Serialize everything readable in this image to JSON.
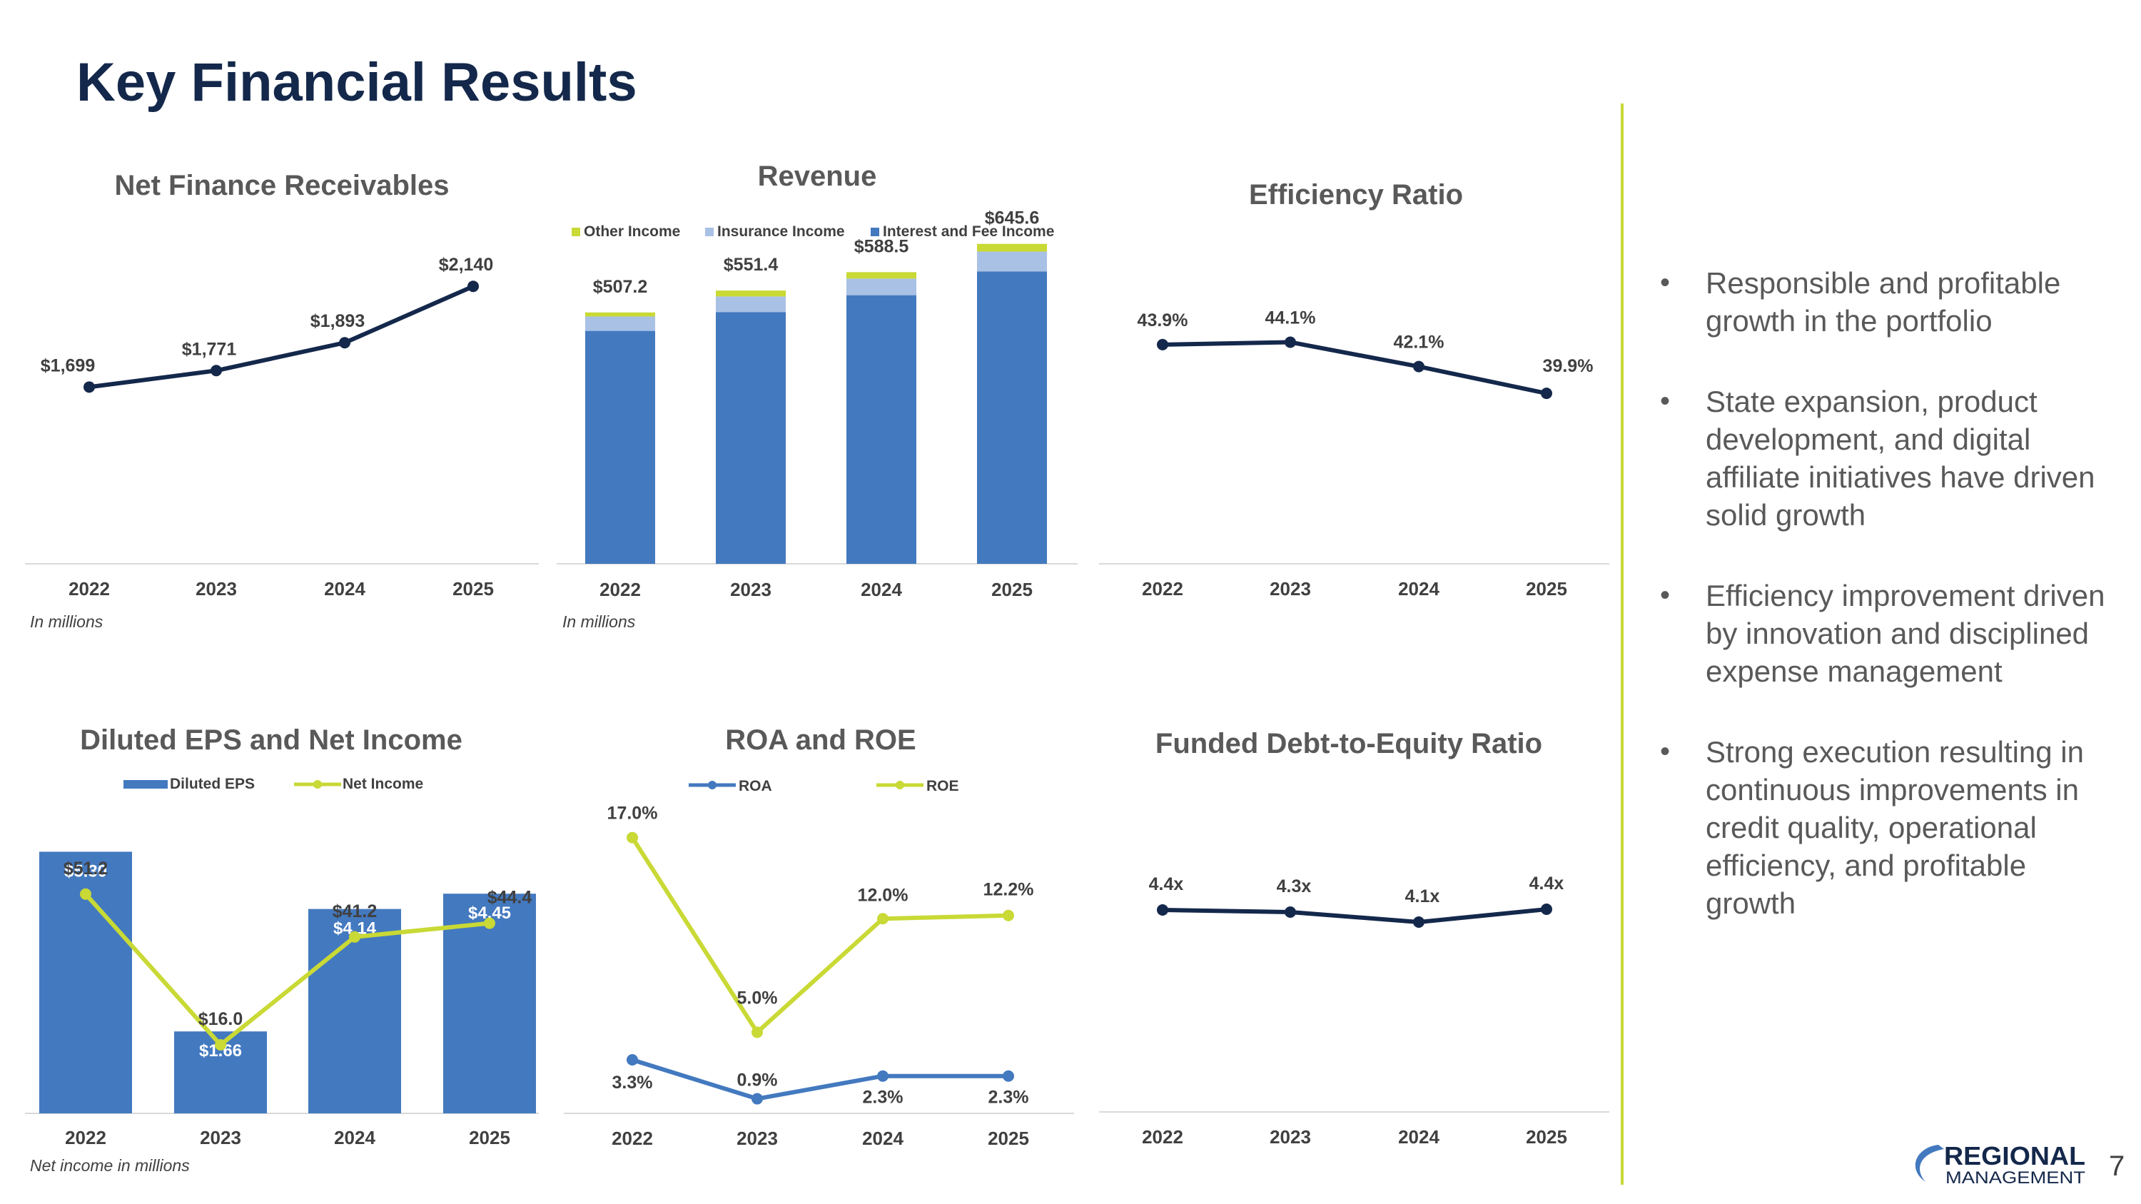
{
  "page": {
    "title": "Key Financial Results",
    "page_number": "7",
    "notes": {
      "receivables": "In millions",
      "revenue": "In millions",
      "eps": "Net income in millions"
    },
    "bullets": [
      "Responsible and profitable growth in the portfolio",
      "State expansion, product development, and digital affiliate initiatives have driven solid growth",
      "Efficiency improvement driven by innovation and disciplined expense management",
      "Strong execution resulting in continuous improvements in credit quality, operational efficiency, and profitable growth"
    ],
    "logo": {
      "line1": "REGIONAL",
      "line2": "MANAGEMENT"
    },
    "colors": {
      "navy": "#14284B",
      "blue": "#4379BF",
      "light_blue": "#A9C1E5",
      "lime": "#C9D935",
      "gray_text": "#595959"
    }
  },
  "chart_data": [
    {
      "id": "net_finance_receivables",
      "type": "line",
      "title": "Net Finance Receivables",
      "categories": [
        "2022",
        "2023",
        "2024",
        "2025"
      ],
      "series": [
        {
          "name": "Net Finance Receivables",
          "values": [
            1699,
            1771,
            1893,
            2140
          ],
          "labels": [
            "$1,699",
            "$1,771",
            "$1,893",
            "$2,140"
          ]
        }
      ],
      "ylim": [
        1300,
        2300
      ],
      "unit": "In millions"
    },
    {
      "id": "revenue",
      "type": "bar",
      "stacked": true,
      "title": "Revenue",
      "categories": [
        "2022",
        "2023",
        "2024",
        "2025"
      ],
      "series": [
        {
          "name": "Interest and Fee Income",
          "values": [
            470.0,
            508.0,
            542.0,
            590.0
          ]
        },
        {
          "name": "Insurance Income",
          "values": [
            29.0,
            31.5,
            33.5,
            40.0
          ]
        },
        {
          "name": "Other Income",
          "values": [
            8.2,
            11.9,
            13.0,
            15.6
          ]
        }
      ],
      "totals": [
        "$507.2",
        "$551.4",
        "$588.5",
        "$645.6"
      ],
      "legend": [
        "Other Income",
        "Insurance Income",
        "Interest and Fee Income"
      ],
      "ylim": [
        0,
        720
      ],
      "unit": "In millions"
    },
    {
      "id": "efficiency_ratio",
      "type": "line",
      "title": "Efficiency Ratio",
      "categories": [
        "2022",
        "2023",
        "2024",
        "2025"
      ],
      "series": [
        {
          "name": "Efficiency Ratio",
          "values": [
            43.9,
            44.1,
            42.1,
            39.9
          ],
          "labels": [
            "43.9%",
            "44.1%",
            "42.1%",
            "39.9%"
          ]
        }
      ],
      "ylim": [
        30,
        47
      ]
    },
    {
      "id": "diluted_eps_net_income",
      "type": "bar",
      "title": "Diluted EPS and Net Income",
      "categories": [
        "2022",
        "2023",
        "2024",
        "2025"
      ],
      "series": [
        {
          "name": "Diluted EPS",
          "kind": "bar",
          "values": [
            5.3,
            1.66,
            4.14,
            4.45
          ],
          "labels": [
            "$5.30",
            "$1.66",
            "$4.14",
            "$4.45"
          ]
        },
        {
          "name": "Net Income",
          "kind": "line",
          "values": [
            51.2,
            16.0,
            41.2,
            44.4
          ],
          "labels": [
            "$51.2",
            "$16.0",
            "$41.2",
            "$44.4"
          ]
        }
      ],
      "ylim_bar": [
        0,
        6.0
      ],
      "ylim_line": [
        0,
        70
      ],
      "unit": "Net income in millions"
    },
    {
      "id": "roa_roe",
      "type": "line",
      "title": "ROA and ROE",
      "categories": [
        "2022",
        "2023",
        "2024",
        "2025"
      ],
      "series": [
        {
          "name": "ROA",
          "values": [
            3.3,
            0.9,
            2.3,
            2.3
          ],
          "labels": [
            "3.3%",
            "0.9%",
            "2.3%",
            "2.3%"
          ]
        },
        {
          "name": "ROE",
          "values": [
            17.0,
            5.0,
            12.0,
            12.2
          ],
          "labels": [
            "17.0%",
            "5.0%",
            "12.0%",
            "12.2%"
          ]
        }
      ],
      "ylim": [
        0,
        22
      ]
    },
    {
      "id": "funded_debt_to_equity",
      "type": "line",
      "title": "Funded Debt-to-Equity Ratio",
      "categories": [
        "2022",
        "2023",
        "2024",
        "2025"
      ],
      "series": [
        {
          "name": "Funded Debt-to-Equity Ratio",
          "values": [
            4.4,
            4.3,
            4.1,
            4.4
          ],
          "labels": [
            "4.4x",
            "4.3x",
            "4.1x",
            "4.4x"
          ]
        }
      ],
      "ylim": [
        0,
        7
      ]
    }
  ]
}
